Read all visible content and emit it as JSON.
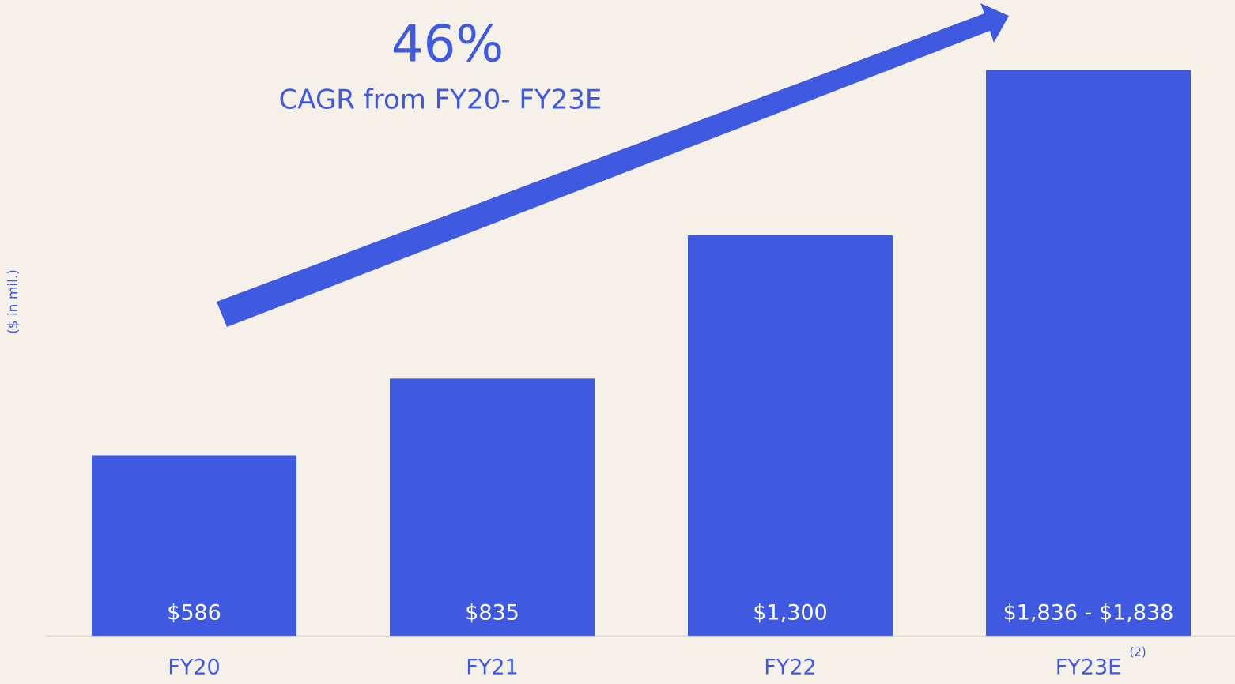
{
  "chart_data": {
    "type": "bar",
    "annotations": [
      "46%",
      "CAGR from FY20- FY23E"
    ],
    "ylabel": "($ in mil.)",
    "categories": [
      "FY20",
      "FY21",
      "FY22",
      "FY23E"
    ],
    "category_notes": [
      null,
      null,
      null,
      "(2)"
    ],
    "values": [
      586,
      835,
      1300,
      1837
    ],
    "value_labels": [
      "$586",
      "$835",
      "$1,300",
      "$1,836 - $1,838"
    ],
    "color": "#3f5ae0",
    "ylim": [
      0,
      1900
    ]
  }
}
